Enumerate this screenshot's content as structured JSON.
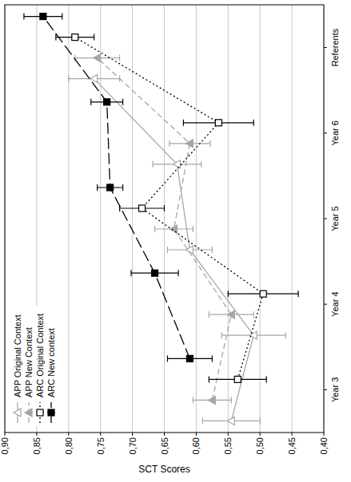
{
  "chart_data": {
    "type": "line",
    "y_label": "SCT Scores",
    "categories": [
      "Year 3",
      "Year 4",
      "Year 5",
      "Year 6",
      "Referents"
    ],
    "ylim": [
      0.4,
      0.9
    ],
    "yticks": [
      {
        "value": 0.4,
        "label": "0,40"
      },
      {
        "value": 0.45,
        "label": "0,45"
      },
      {
        "value": 0.5,
        "label": "0,50"
      },
      {
        "value": 0.55,
        "label": "0,55"
      },
      {
        "value": 0.6,
        "label": "0,60"
      },
      {
        "value": 0.65,
        "label": "0,65"
      },
      {
        "value": 0.7,
        "label": "0,70"
      },
      {
        "value": 0.75,
        "label": "0,75"
      },
      {
        "value": 0.8,
        "label": "0,80"
      },
      {
        "value": 0.85,
        "label": "0,85"
      },
      {
        "value": 0.9,
        "label": "0,90"
      }
    ],
    "grid": true,
    "legend": "top-left",
    "series": [
      {
        "name": "APP Original Context",
        "color": "#a6a6a6",
        "marker": "triangle-open",
        "line_style": "solid",
        "values": [
          0.545,
          0.51,
          0.61,
          0.63,
          0.76
        ],
        "errors": [
          0.045,
          0.05,
          0.035,
          0.038,
          0.04
        ]
      },
      {
        "name": "APP New Context",
        "color": "#a6a6a6",
        "marker": "triangle",
        "line_style": "dashed",
        "values": [
          0.575,
          0.545,
          0.635,
          0.61,
          0.755
        ],
        "errors": [
          0.03,
          0.035,
          0.03,
          0.032,
          0.035
        ]
      },
      {
        "name": "ARC Original Context",
        "color": "#000000",
        "marker": "square-open",
        "line_style": "dotted",
        "values": [
          0.535,
          0.495,
          0.685,
          0.565,
          0.79
        ],
        "errors": [
          0.045,
          0.055,
          0.035,
          0.055,
          0.03
        ]
      },
      {
        "name": "ARC New context",
        "color": "#000000",
        "marker": "square",
        "line_style": "long-dash",
        "values": [
          0.61,
          0.665,
          0.735,
          0.74,
          0.84
        ],
        "errors": [
          0.035,
          0.037,
          0.02,
          0.025,
          0.03
        ]
      }
    ]
  }
}
